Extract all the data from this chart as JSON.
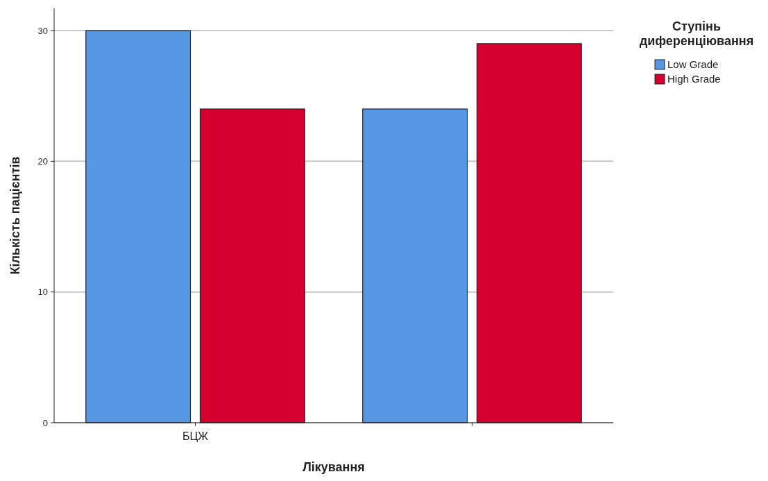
{
  "chart_data": {
    "type": "bar",
    "xlabel": "Лікування",
    "ylabel": "Кількість пацієнтів",
    "legend_title": "Ступінь диференціювання",
    "categories": [
      "БЦЖ",
      null
    ],
    "series": [
      {
        "name": "Low Grade",
        "color": "#5597e3",
        "values": [
          30,
          24
        ]
      },
      {
        "name": "High Grade",
        "color": "#d5002d",
        "values": [
          24,
          29
        ]
      }
    ],
    "ylim": [
      0,
      31.7
    ],
    "yticks": [
      0,
      10,
      20,
      30
    ],
    "grid": "y",
    "legend": "top right"
  }
}
